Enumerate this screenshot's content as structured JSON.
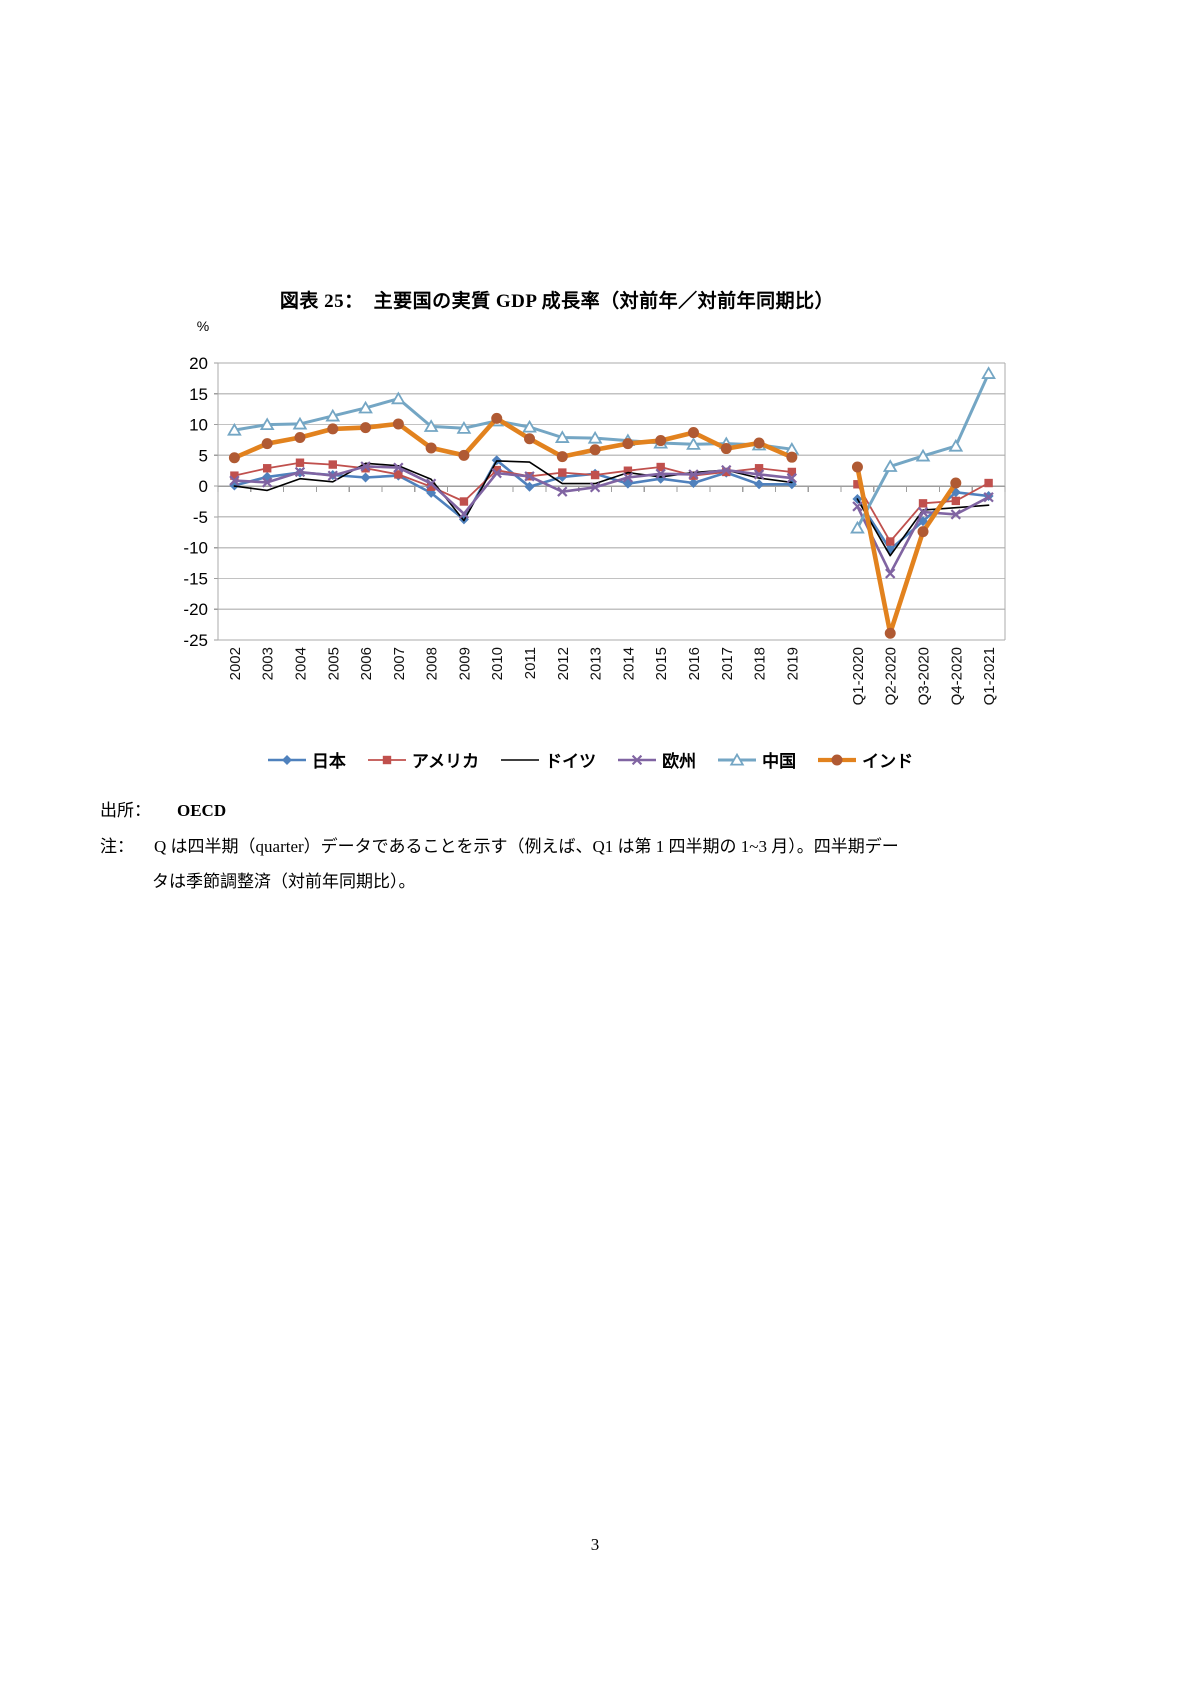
{
  "title": "図表 25：　主要国の実質 GDP 成長率（対前年／対前年同期比）",
  "source": {
    "label": "出所：",
    "value": "OECD"
  },
  "note": {
    "label": "注：",
    "line1": "Q は四半期（quarter）データであることを示す（例えば、Q1 は第 1 四半期の 1~3 月）。四半期デー",
    "line2": "タは季節調整済（対前年同期比）。"
  },
  "page": {
    "number": "3"
  },
  "chart_data": {
    "type": "line",
    "unit_label": "%",
    "ylim": [
      -25,
      20
    ],
    "ytick_interval": 5,
    "grid": true,
    "legend_position": "bottom",
    "x_axis_note": "empty category between 2019 and Q1-2020 creates a visual gap",
    "categories": [
      "2002",
      "2003",
      "2004",
      "2005",
      "2006",
      "2007",
      "2008",
      "2009",
      "2010",
      "2011",
      "2012",
      "2013",
      "2014",
      "2015",
      "2016",
      "2017",
      "2018",
      "2019",
      "",
      "Q1-2020",
      "Q2-2020",
      "Q3-2020",
      "Q4-2020",
      "Q1-2021"
    ],
    "series": [
      {
        "id": "japan",
        "name": "日本",
        "color": "#4F81BD",
        "marker": "diamond",
        "line_width": 2.6,
        "values": [
          0.1,
          1.5,
          2.2,
          1.8,
          1.4,
          1.7,
          -1.1,
          -5.4,
          4.2,
          -0.1,
          1.5,
          2.0,
          0.4,
          1.2,
          0.5,
          2.2,
          0.3,
          0.3,
          null,
          -2.1,
          -10.3,
          -5.7,
          -1.0,
          -1.6
        ]
      },
      {
        "id": "usa",
        "name": "アメリカ",
        "color": "#C0504D",
        "marker": "square",
        "line_width": 1.8,
        "values": [
          1.7,
          2.9,
          3.8,
          3.5,
          2.9,
          1.9,
          -0.1,
          -2.5,
          2.6,
          1.6,
          2.2,
          1.8,
          2.5,
          3.1,
          1.7,
          2.3,
          2.9,
          2.3,
          null,
          0.3,
          -9.0,
          -2.8,
          -2.4,
          0.5
        ]
      },
      {
        "id": "germany",
        "name": "ドイツ",
        "color": "#000000",
        "marker": "none",
        "line_width": 1.6,
        "values": [
          0.0,
          -0.7,
          1.2,
          0.7,
          3.7,
          3.3,
          1.1,
          -5.6,
          4.1,
          3.9,
          0.4,
          0.4,
          2.2,
          1.5,
          2.2,
          2.6,
          1.3,
          0.6,
          null,
          -2.1,
          -11.3,
          -3.9,
          -3.5,
          -3.1
        ]
      },
      {
        "id": "europe",
        "name": "欧州",
        "color": "#8064A2",
        "marker": "x",
        "line_width": 2.6,
        "values": [
          0.9,
          0.6,
          2.3,
          1.7,
          3.2,
          3.0,
          0.4,
          -4.5,
          2.1,
          1.6,
          -0.9,
          -0.2,
          1.4,
          2.0,
          1.9,
          2.6,
          1.9,
          1.3,
          null,
          -3.3,
          -14.2,
          -4.2,
          -4.6,
          -1.8
        ]
      },
      {
        "id": "china",
        "name": "中国",
        "color": "#74A6C4",
        "marker": "triangle-open",
        "line_width": 3.0,
        "values": [
          9.1,
          10.0,
          10.1,
          11.4,
          12.7,
          14.2,
          9.7,
          9.4,
          10.6,
          9.6,
          7.9,
          7.8,
          7.4,
          7.0,
          6.8,
          6.9,
          6.7,
          6.0,
          null,
          -6.8,
          3.2,
          4.9,
          6.5,
          18.3
        ]
      },
      {
        "id": "india",
        "name": "インド",
        "color": "#E2821E",
        "marker": "circle",
        "marker_color": "#B05A33",
        "line_width": 4.6,
        "values": [
          4.6,
          6.9,
          7.9,
          9.3,
          9.5,
          10.1,
          6.2,
          5.0,
          11.0,
          7.7,
          4.8,
          5.9,
          6.9,
          7.4,
          8.7,
          6.1,
          7.0,
          4.7,
          null,
          3.1,
          -23.9,
          -7.4,
          0.5,
          null
        ]
      }
    ],
    "plot_colors": {
      "gridline": "#C2C2C2",
      "border": "#ABABAB",
      "zero_line": "#9E9E9E",
      "tick": "#9E9E9E"
    }
  }
}
